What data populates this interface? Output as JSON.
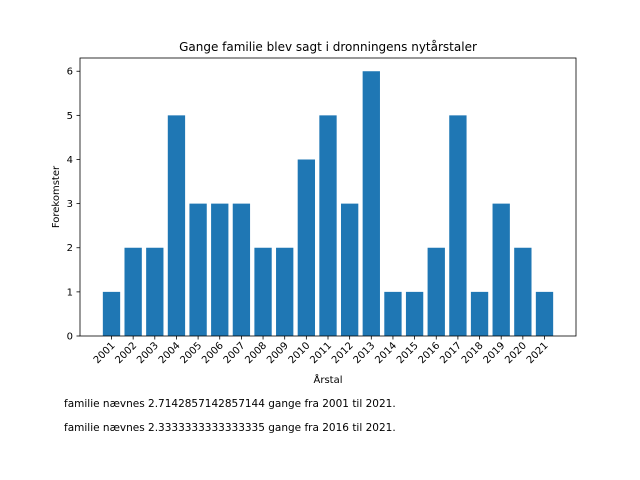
{
  "chart_data": {
    "type": "bar",
    "title": "Gange familie blev sagt i dronningens nytårstaler",
    "xlabel": "Årstal",
    "ylabel": "Forekomster",
    "categories": [
      "2001",
      "2002",
      "2003",
      "2004",
      "2005",
      "2006",
      "2007",
      "2008",
      "2009",
      "2010",
      "2011",
      "2012",
      "2013",
      "2014",
      "2015",
      "2016",
      "2017",
      "2018",
      "2019",
      "2020",
      "2021"
    ],
    "values": [
      1,
      2,
      2,
      5,
      3,
      3,
      3,
      2,
      2,
      4,
      5,
      3,
      6,
      1,
      1,
      2,
      5,
      1,
      3,
      2,
      1
    ],
    "ylim": [
      0,
      6.3
    ],
    "yticks": [
      "0",
      "1",
      "2",
      "3",
      "4",
      "5",
      "6"
    ],
    "bar_color": "#1f77b4",
    "grid": false,
    "legend": "none"
  },
  "notes": {
    "line1": "familie nævnes 2.7142857142857144 gange fra 2001 til 2021.",
    "line2": "familie nævnes 2.3333333333333335 gange fra 2016 til 2021."
  }
}
